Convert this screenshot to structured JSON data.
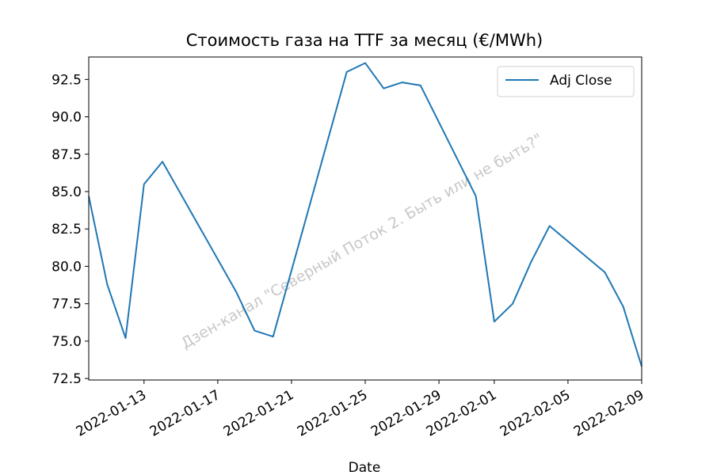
{
  "chart_data": {
    "type": "line",
    "title": "Стоимость газа на TTF за месяц (€/MWh)",
    "xlabel": "Date",
    "ylabel": "",
    "ylim": [
      72.4,
      94.0
    ],
    "xlim": [
      "2022-01-10",
      "2022-02-09"
    ],
    "grid": false,
    "legend_position": "top-right",
    "y_ticks": [
      "72.5",
      "75.0",
      "77.5",
      "80.0",
      "82.5",
      "85.0",
      "87.5",
      "90.0",
      "92.5"
    ],
    "x_ticks": [
      "2022-01-13",
      "2022-01-17",
      "2022-01-21",
      "2022-01-25",
      "2022-01-29",
      "2022-02-01",
      "2022-02-05",
      "2022-02-09"
    ],
    "series": [
      {
        "name": "Adj Close",
        "color": "#1f77b4",
        "x": [
          "2022-01-10",
          "2022-01-11",
          "2022-01-12",
          "2022-01-13",
          "2022-01-14",
          "2022-01-18",
          "2022-01-19",
          "2022-01-20",
          "2022-01-24",
          "2022-01-25",
          "2022-01-26",
          "2022-01-27",
          "2022-01-28",
          "2022-01-31",
          "2022-02-01",
          "2022-02-02",
          "2022-02-03",
          "2022-02-04",
          "2022-02-07",
          "2022-02-08",
          "2022-02-09"
        ],
        "values": [
          84.7,
          78.8,
          75.2,
          85.5,
          87.0,
          78.3,
          75.7,
          75.3,
          93.0,
          93.6,
          91.9,
          92.3,
          92.1,
          84.7,
          76.3,
          77.5,
          80.3,
          82.7,
          79.6,
          77.3,
          73.3
        ]
      }
    ]
  },
  "watermark": "Дзен-канал \"Северный Поток 2. Быть или не быть?\""
}
